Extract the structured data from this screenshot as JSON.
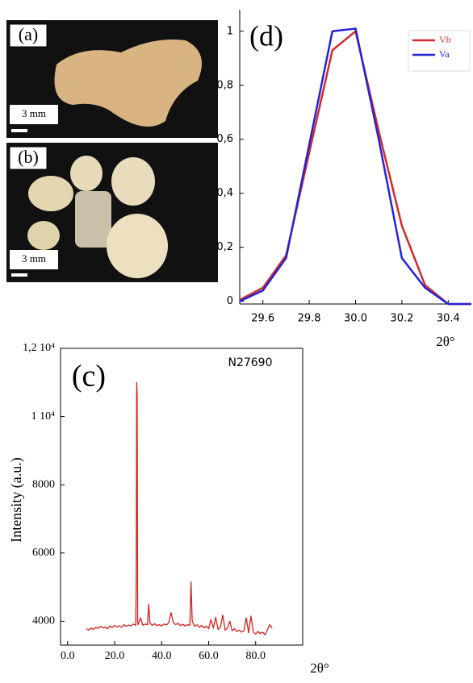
{
  "photos": [
    {
      "label": "(a)",
      "scale": "3 mm"
    },
    {
      "label": "(b)",
      "scale": "3 mm"
    }
  ],
  "chart_data": [
    {
      "type": "line",
      "label": "(d)",
      "xlabel": "2θ°",
      "legend": "upper right",
      "grid": false,
      "x": [
        29.5,
        29.6,
        29.7,
        29.8,
        29.9,
        30.0,
        30.1,
        30.2,
        30.3,
        30.4,
        30.5
      ],
      "xlim": [
        29.5,
        30.5
      ],
      "xticks": [
        29.6,
        29.8,
        {
          "value": 30,
          "label": "30.0"
        },
        30.2,
        30.4
      ],
      "ylim": [
        -0.01,
        1.08
      ],
      "yticks": [
        0,
        {
          "value": 0.2,
          "label": "0,2"
        },
        {
          "value": 0.4,
          "label": "0,4"
        },
        {
          "value": 0.6,
          "label": "0,6"
        },
        {
          "value": 0.8,
          "label": "0,8"
        },
        1
      ],
      "series": [
        {
          "name": "Vb",
          "color": "#d42a2a",
          "values": [
            0.005,
            0.05,
            0.17,
            0.55,
            0.93,
            1.0,
            0.63,
            0.28,
            0.06,
            -0.01,
            -0.01
          ]
        },
        {
          "name": "Va",
          "color": "#2323d8",
          "values": [
            0.0,
            0.04,
            0.16,
            0.58,
            1.0,
            1.01,
            0.6,
            0.16,
            0.05,
            -0.01,
            -0.01
          ]
        }
      ]
    },
    {
      "type": "line",
      "label": "(c)",
      "title": "N27690",
      "xlabel": "2θ°",
      "ylabel": "Intensity (a.u.)",
      "grid": false,
      "xlim": [
        -3,
        100
      ],
      "xticks": [
        {
          "value": 0,
          "label": "0.0"
        },
        {
          "value": 20,
          "label": "20.0"
        },
        {
          "value": 40,
          "label": "40.0"
        },
        {
          "value": 60,
          "label": "60.0"
        },
        {
          "value": 80,
          "label": "80.0"
        }
      ],
      "ylim": [
        3300,
        12000
      ],
      "yticks": [
        4000,
        6000,
        8000,
        {
          "value": 10000,
          "label": "1 10⁴"
        },
        {
          "value": 12000,
          "label": "1,2 10⁴"
        }
      ],
      "x": [
        8,
        9,
        10,
        11,
        12,
        13,
        14,
        15,
        16,
        17,
        18,
        19,
        20,
        21,
        22,
        23,
        24,
        25,
        26,
        27,
        28,
        29,
        29.2,
        29.4,
        29.6,
        29.8,
        30,
        31,
        32,
        33,
        34,
        34.5,
        35,
        36,
        37,
        38,
        39,
        40,
        41,
        42,
        43,
        44,
        45,
        46,
        47,
        48,
        49,
        50,
        51,
        52,
        52.5,
        53,
        54,
        55,
        56,
        57,
        58,
        59,
        60,
        61,
        62,
        63,
        64,
        65,
        66,
        67,
        68,
        69,
        70,
        71,
        72,
        73,
        74,
        75,
        76,
        77,
        78,
        79,
        80,
        81,
        82,
        83,
        84,
        85,
        86,
        87
      ],
      "series": [
        {
          "name": "N27690",
          "color": "#d42020",
          "values": [
            3780,
            3740,
            3800,
            3760,
            3820,
            3790,
            3850,
            3800,
            3830,
            3780,
            3860,
            3810,
            3880,
            3830,
            3870,
            3820,
            3900,
            3850,
            3890,
            3860,
            3920,
            3880,
            5400,
            11000,
            10600,
            4000,
            3900,
            4100,
            3880,
            3920,
            3900,
            4500,
            3950,
            3880,
            3930,
            3870,
            3900,
            3860,
            3920,
            3890,
            3950,
            4250,
            3960,
            3900,
            3940,
            3870,
            3910,
            3860,
            3900,
            3880,
            5150,
            4000,
            3850,
            3900,
            3820,
            3880,
            3800,
            3860,
            3780,
            4050,
            3800,
            4120,
            3760,
            3820,
            4180,
            3740,
            3800,
            4000,
            3720,
            3780,
            3700,
            3740,
            3680,
            3720,
            4100,
            3660,
            4150,
            3680,
            3620,
            3700,
            3640,
            3680,
            3600,
            3750,
            3900,
            3800
          ]
        }
      ]
    }
  ]
}
